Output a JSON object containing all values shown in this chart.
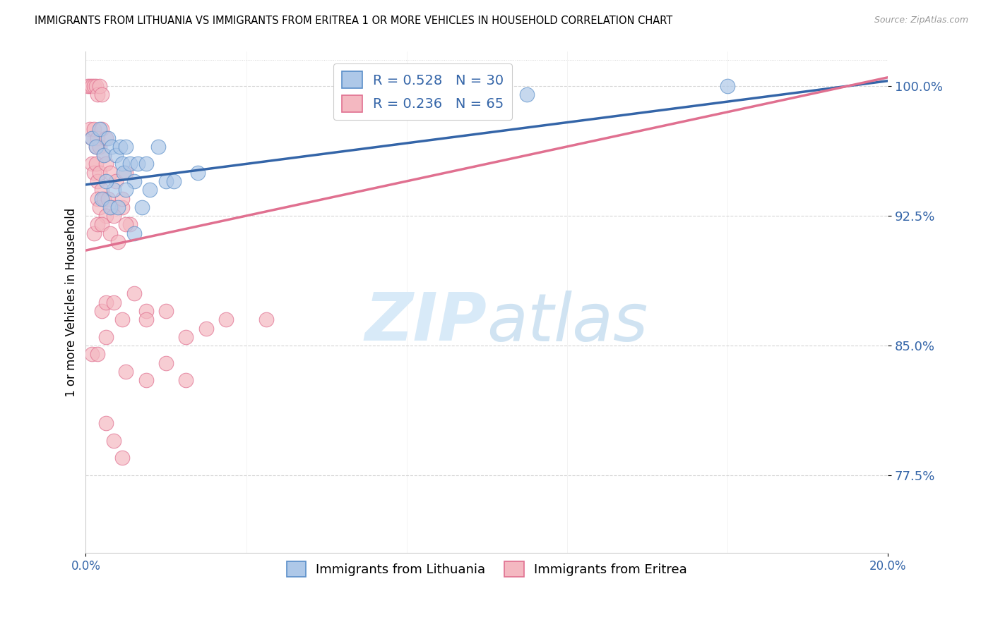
{
  "title": "IMMIGRANTS FROM LITHUANIA VS IMMIGRANTS FROM ERITREA 1 OR MORE VEHICLES IN HOUSEHOLD CORRELATION CHART",
  "source": "Source: ZipAtlas.com",
  "ylabel": "1 or more Vehicles in Household",
  "yticks": [
    100.0,
    92.5,
    85.0,
    77.5
  ],
  "ytick_labels": [
    "100.0%",
    "92.5%",
    "85.0%",
    "77.5%"
  ],
  "xmin": 0.0,
  "xmax": 20.0,
  "ymin": 73.0,
  "ymax": 102.0,
  "legend_blue_R": "R = 0.528",
  "legend_blue_N": "N = 30",
  "legend_pink_R": "R = 0.236",
  "legend_pink_N": "N = 65",
  "blue_scatter_color": "#aec8e8",
  "blue_edge_color": "#5b8fc9",
  "pink_scatter_color": "#f4b8c1",
  "pink_edge_color": "#e07090",
  "blue_line_color": "#3465a8",
  "pink_line_color": "#e07090",
  "legend_label_blue": "Immigrants from Lithuania",
  "legend_label_pink": "Immigrants from Eritrea",
  "background_color": "#ffffff",
  "watermark_zip": "ZIP",
  "watermark_atlas": "atlas",
  "watermark_color": "#d8eaf8",
  "blue_trend_x0": 0.0,
  "blue_trend_y0": 94.3,
  "blue_trend_x1": 20.0,
  "blue_trend_y1": 100.3,
  "pink_trend_x0": 0.0,
  "pink_trend_y0": 90.5,
  "pink_trend_x1": 20.0,
  "pink_trend_y1": 100.5,
  "blue_x": [
    0.15,
    0.25,
    0.35,
    0.45,
    0.55,
    0.65,
    0.75,
    0.85,
    0.9,
    0.95,
    1.0,
    1.1,
    1.2,
    1.3,
    1.5,
    1.6,
    1.8,
    2.0,
    2.2,
    2.8,
    0.4,
    0.6,
    0.7,
    0.8,
    1.0,
    1.2,
    1.4,
    0.5,
    11.0,
    16.0
  ],
  "blue_y": [
    97.0,
    96.5,
    97.5,
    96.0,
    97.0,
    96.5,
    96.0,
    96.5,
    95.5,
    95.0,
    96.5,
    95.5,
    94.5,
    95.5,
    95.5,
    94.0,
    96.5,
    94.5,
    94.5,
    95.0,
    93.5,
    93.0,
    94.0,
    93.0,
    94.0,
    91.5,
    93.0,
    94.5,
    99.5,
    100.0
  ],
  "pink_x": [
    0.05,
    0.1,
    0.15,
    0.2,
    0.25,
    0.3,
    0.35,
    0.4,
    0.1,
    0.15,
    0.2,
    0.25,
    0.3,
    0.35,
    0.4,
    0.45,
    0.5,
    0.15,
    0.2,
    0.25,
    0.3,
    0.35,
    0.4,
    0.5,
    0.6,
    0.3,
    0.35,
    0.45,
    0.55,
    0.65,
    0.75,
    0.9,
    1.0,
    0.5,
    0.7,
    0.9,
    1.1,
    0.2,
    0.3,
    0.4,
    0.6,
    0.8,
    1.0,
    0.4,
    0.5,
    0.7,
    0.9,
    1.2,
    1.5,
    1.5,
    2.0,
    2.5,
    3.0,
    3.5,
    4.5,
    0.15,
    0.3,
    0.5,
    1.0,
    1.5,
    2.0,
    2.5,
    0.5,
    0.7,
    0.9
  ],
  "pink_y": [
    100.0,
    100.0,
    100.0,
    100.0,
    100.0,
    99.5,
    100.0,
    99.5,
    97.5,
    97.0,
    97.5,
    96.5,
    97.0,
    96.5,
    97.5,
    96.0,
    97.0,
    95.5,
    95.0,
    95.5,
    94.5,
    95.0,
    94.0,
    95.5,
    95.0,
    93.5,
    93.0,
    93.5,
    93.5,
    93.0,
    94.5,
    93.0,
    95.0,
    92.5,
    92.5,
    93.5,
    92.0,
    91.5,
    92.0,
    92.0,
    91.5,
    91.0,
    92.0,
    87.0,
    87.5,
    87.5,
    86.5,
    88.0,
    87.0,
    86.5,
    87.0,
    85.5,
    86.0,
    86.5,
    86.5,
    84.5,
    84.5,
    85.5,
    83.5,
    83.0,
    84.0,
    83.0,
    80.5,
    79.5,
    78.5
  ]
}
